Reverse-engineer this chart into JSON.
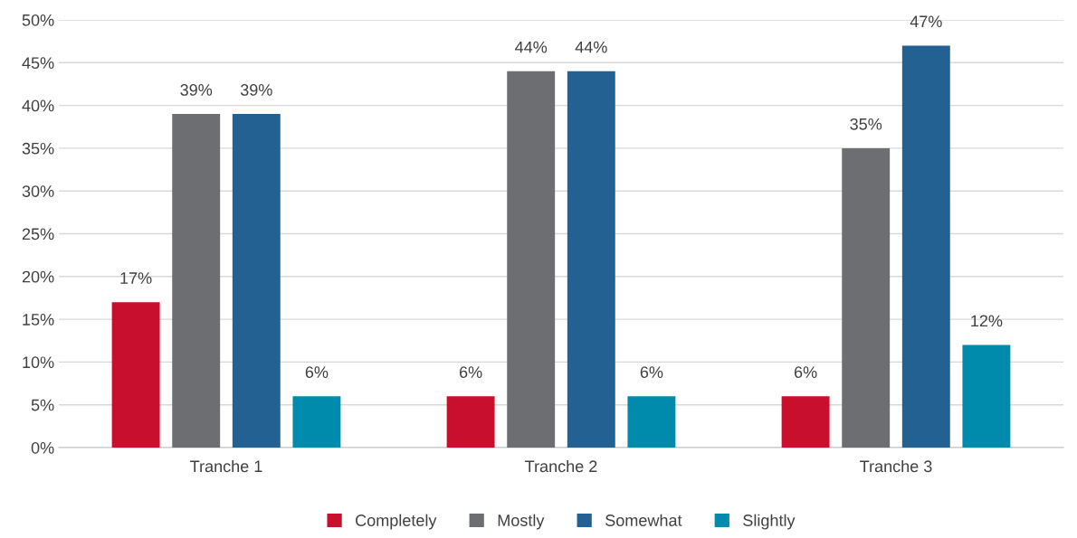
{
  "chart_data": {
    "type": "bar",
    "categories": [
      "Tranche 1",
      "Tranche 2",
      "Tranche 3"
    ],
    "series": [
      {
        "name": "Completely",
        "color": "#c8102e",
        "values": [
          17,
          6,
          6
        ],
        "value_labels": [
          "17%",
          "6%",
          "6%"
        ]
      },
      {
        "name": "Mostly",
        "color": "#6d6e71",
        "values": [
          39,
          44,
          35
        ],
        "value_labels": [
          "39%",
          "44%",
          "35%"
        ]
      },
      {
        "name": "Somewhat",
        "color": "#236192",
        "values": [
          39,
          44,
          47
        ],
        "value_labels": [
          "39%",
          "44%",
          "47%"
        ]
      },
      {
        "name": "Slightly",
        "color": "#008aab",
        "values": [
          6,
          6,
          12
        ],
        "value_labels": [
          "6%",
          "6%",
          "12%"
        ]
      }
    ],
    "ylim": [
      0,
      50
    ],
    "yticks": [
      {
        "value": 0,
        "label": "0%"
      },
      {
        "value": 5,
        "label": "5%"
      },
      {
        "value": 10,
        "label": "10%"
      },
      {
        "value": 15,
        "label": "15%"
      },
      {
        "value": 20,
        "label": "20%"
      },
      {
        "value": 25,
        "label": "25%"
      },
      {
        "value": 30,
        "label": "30%"
      },
      {
        "value": 35,
        "label": "35%"
      },
      {
        "value": 40,
        "label": "40%"
      },
      {
        "value": 45,
        "label": "45%"
      },
      {
        "value": 50,
        "label": "50%"
      }
    ],
    "grid": "y",
    "legend": "bottom"
  }
}
